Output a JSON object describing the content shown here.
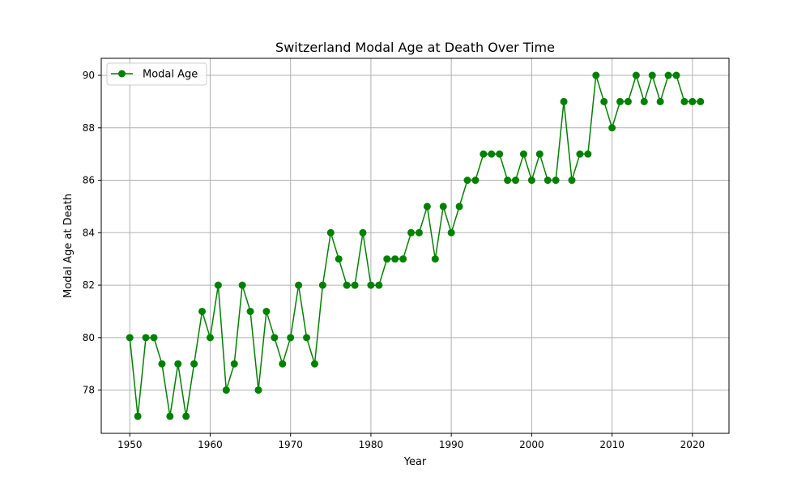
{
  "chart_data": {
    "type": "line",
    "title": "Switzerland Modal Age at Death Over Time",
    "xlabel": "Year",
    "ylabel": "Modal Age at Death",
    "xlim": [
      1946.45,
      2024.55
    ],
    "ylim": [
      76.35,
      90.65
    ],
    "xticks": [
      1950,
      1960,
      1970,
      1980,
      1990,
      2000,
      2010,
      2020
    ],
    "yticks": [
      78,
      80,
      82,
      84,
      86,
      88,
      90
    ],
    "grid": true,
    "legend_position": "top-left",
    "colors": {
      "series": "#008000",
      "grid": "#b0b0b0",
      "axes": "#000000"
    },
    "series": [
      {
        "name": "Modal Age",
        "x": [
          1950,
          1951,
          1952,
          1953,
          1954,
          1955,
          1956,
          1957,
          1958,
          1959,
          1960,
          1961,
          1962,
          1963,
          1964,
          1965,
          1966,
          1967,
          1968,
          1969,
          1970,
          1971,
          1972,
          1973,
          1974,
          1975,
          1976,
          1977,
          1978,
          1979,
          1980,
          1981,
          1982,
          1983,
          1984,
          1985,
          1986,
          1987,
          1988,
          1989,
          1990,
          1991,
          1992,
          1993,
          1994,
          1995,
          1996,
          1997,
          1998,
          1999,
          2000,
          2001,
          2002,
          2003,
          2004,
          2005,
          2006,
          2007,
          2008,
          2009,
          2010,
          2011,
          2012,
          2013,
          2014,
          2015,
          2016,
          2017,
          2018,
          2019,
          2020,
          2021
        ],
        "values": [
          80,
          77,
          80,
          80,
          79,
          77,
          79,
          77,
          79,
          81,
          80,
          82,
          78,
          79,
          82,
          81,
          78,
          81,
          80,
          79,
          80,
          82,
          80,
          79,
          82,
          84,
          83,
          82,
          82,
          84,
          82,
          82,
          83,
          83,
          83,
          84,
          84,
          85,
          83,
          85,
          84,
          85,
          86,
          86,
          87,
          87,
          87,
          86,
          86,
          87,
          86,
          87,
          86,
          86,
          89,
          86,
          87,
          87,
          90,
          89,
          88,
          89,
          89,
          90,
          89,
          90,
          89,
          90,
          90,
          89,
          89,
          89
        ]
      }
    ]
  }
}
